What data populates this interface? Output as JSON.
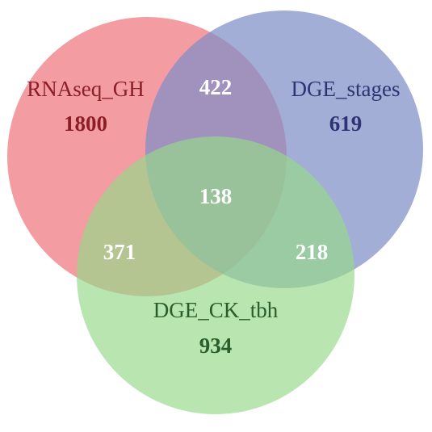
{
  "sets": [
    {
      "id": "a",
      "name": "RNAseq_GH",
      "only": "1800",
      "fill": "#f08086",
      "text_color": "#8b1f28"
    },
    {
      "id": "b",
      "name": "DGE_stages",
      "only": "619",
      "fill": "#7f8fc7",
      "text_color": "#2e3473"
    },
    {
      "id": "c",
      "name": "DGE_CK_tbh",
      "only": "934",
      "fill": "#96d98b",
      "text_color": "#2a5c2c"
    }
  ],
  "overlaps": {
    "ab": "422",
    "ac": "371",
    "bc": "218",
    "abc": "138"
  }
}
